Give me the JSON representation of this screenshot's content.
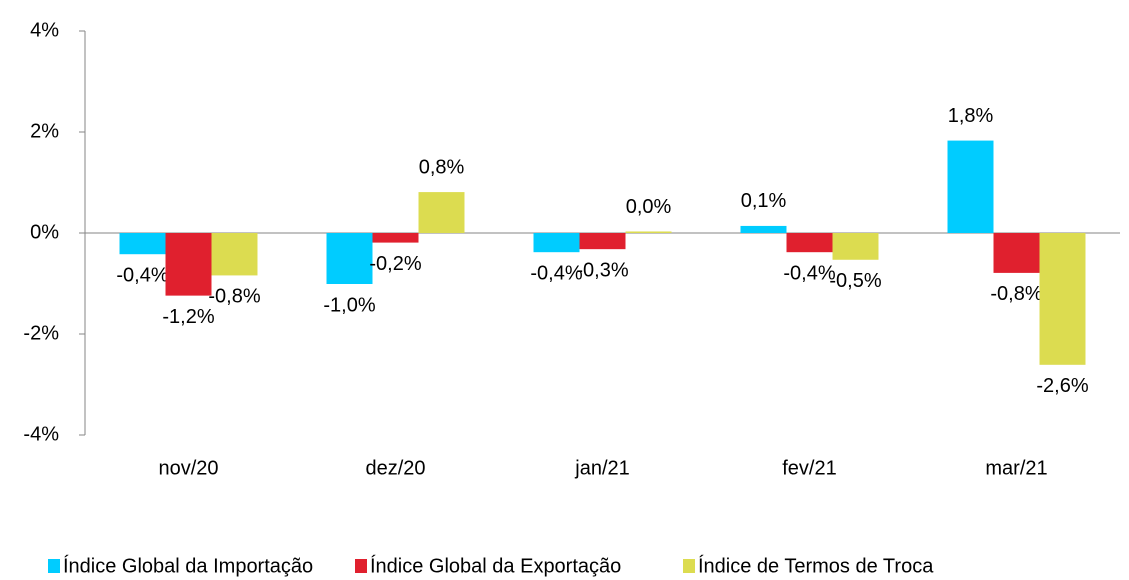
{
  "chart_data": {
    "type": "bar",
    "categories": [
      "nov/20",
      "dez/20",
      "jan/21",
      "fev/21",
      "mar/21"
    ],
    "series": [
      {
        "name": "Índice Global da Importação",
        "color": "#00ccff",
        "values": [
          -0.42,
          -1.01,
          -0.38,
          0.14,
          1.83
        ],
        "value_labels": [
          "-0,4%",
          "-1,0%",
          "-0,4%",
          "0,1%",
          "1,8%"
        ]
      },
      {
        "name": "Índice Global da Exportação",
        "color": "#e0202e",
        "values": [
          -1.24,
          -0.19,
          -0.32,
          -0.38,
          -0.79
        ],
        "value_labels": [
          "-1,2%",
          "-0,2%",
          "-0,3%",
          "-0,4%",
          "-0,8%"
        ]
      },
      {
        "name": "Índice de Termos de Troca",
        "color": "#dcdc50",
        "values": [
          -0.84,
          0.81,
          0.03,
          -0.53,
          -2.61
        ],
        "value_labels": [
          "-0,8%",
          "0,8%",
          "0,0%",
          "-0,5%",
          "-2,6%"
        ]
      }
    ],
    "ylim": [
      -4,
      4
    ],
    "yticks": [
      {
        "value": -4,
        "label": "-4%"
      },
      {
        "value": -2,
        "label": "-2%"
      },
      {
        "value": 0,
        "label": "0%"
      },
      {
        "value": 2,
        "label": "2%"
      },
      {
        "value": 4,
        "label": "4%"
      }
    ],
    "grid": false,
    "legend": "bottom"
  }
}
